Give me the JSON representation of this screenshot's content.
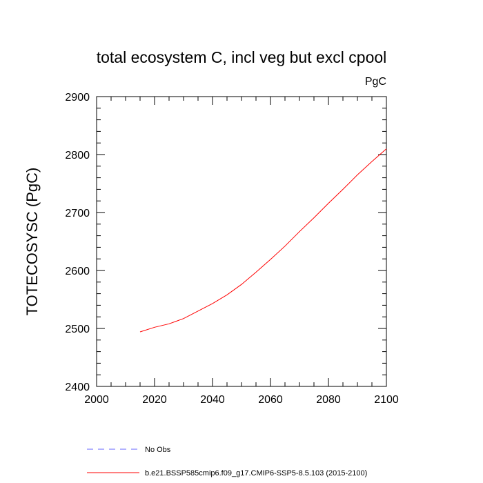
{
  "chart_data": {
    "type": "line",
    "title": "total ecosystem C, incl veg but excl cpool",
    "units_label": "PgC",
    "ylabel": "TOTECOSYSC  (PgC)",
    "xlabel": "",
    "xlim": [
      2000,
      2100
    ],
    "ylim": [
      2400,
      2900
    ],
    "x_ticks": [
      2000,
      2020,
      2040,
      2060,
      2080,
      2100
    ],
    "y_ticks": [
      2400,
      2500,
      2600,
      2700,
      2800,
      2900
    ],
    "x_tick_labels": [
      "2000",
      "2020",
      "2040",
      "2060",
      "2080",
      "2100"
    ],
    "y_tick_labels": [
      "2400",
      "2500",
      "2600",
      "2700",
      "2800",
      "2900"
    ],
    "grid": false,
    "series": [
      {
        "name": "b.e21.BSSP585cmip6.f09_g17.CMIP6-SSP5-8.5.103 (2015-2100)",
        "color": "#ff0000",
        "x": [
          2015,
          2020,
          2025,
          2030,
          2035,
          2040,
          2045,
          2050,
          2055,
          2060,
          2065,
          2070,
          2075,
          2080,
          2085,
          2090,
          2095,
          2100
        ],
        "y": [
          2494,
          2502,
          2508,
          2517,
          2530,
          2543,
          2558,
          2576,
          2597,
          2619,
          2642,
          2667,
          2691,
          2716,
          2740,
          2765,
          2788,
          2810
        ]
      }
    ],
    "legend": {
      "placement": "bottom",
      "entries": [
        {
          "label": "No Obs",
          "color": "#0000ff",
          "style": "dashed"
        },
        {
          "label": "b.e21.BSSP585cmip6.f09_g17.CMIP6-SSP5-8.5.103 (2015-2100)",
          "color": "#ff0000",
          "style": "solid"
        }
      ]
    }
  }
}
